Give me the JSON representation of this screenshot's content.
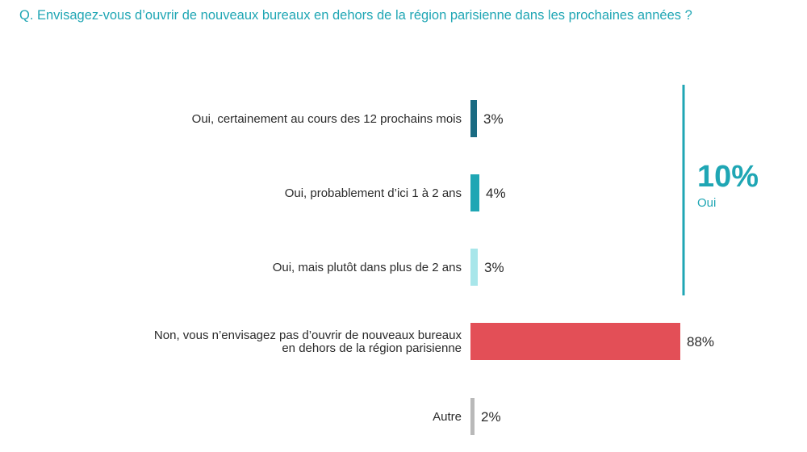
{
  "question": "Q. Envisagez-vous d’ouvrir de nouveaux bureaux en dehors de la région parisienne dans les prochaines années ?",
  "summary": {
    "value": "10%",
    "label": "Oui"
  },
  "chart_data": {
    "type": "bar",
    "orientation": "horizontal",
    "categories": [
      [
        "Oui, certainement au cours des 12 prochains mois"
      ],
      [
        "Oui, probablement d’ici 1 à 2 ans"
      ],
      [
        "Oui, mais plutôt dans plus de 2 ans"
      ],
      [
        "Non, vous n’envisagez pas d’ouvrir de nouveaux bureaux",
        "en dehors de la région parisienne"
      ],
      [
        "Autre"
      ]
    ],
    "values": [
      3,
      4,
      3,
      88,
      2
    ],
    "value_labels": [
      "3%",
      "4%",
      "3%",
      "88%",
      "2%"
    ],
    "colors": [
      "#1a6b82",
      "#1fa6b4",
      "#a8e6ea",
      "#e34f57",
      "#b9b9b9"
    ],
    "xlim": [
      0,
      88
    ],
    "grid": false,
    "legend": "none",
    "bracket_color": "#1fa6b4"
  }
}
